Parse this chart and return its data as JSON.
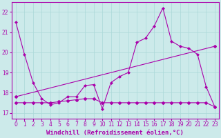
{
  "background_color": "#cceaea",
  "line_color": "#aa00aa",
  "title": "Windchill (Refroidissement éolien,°C)",
  "xlim": [
    -0.5,
    23.5
  ],
  "ylim": [
    16.7,
    22.5
  ],
  "yticks": [
    17,
    18,
    19,
    20,
    21,
    22
  ],
  "xticks": [
    0,
    1,
    2,
    3,
    4,
    5,
    6,
    7,
    8,
    9,
    10,
    11,
    12,
    13,
    14,
    15,
    16,
    17,
    18,
    19,
    20,
    21,
    22,
    23
  ],
  "series1_x": [
    0,
    1,
    2,
    3,
    4,
    5,
    6,
    7,
    8,
    9,
    10,
    11,
    12,
    13,
    14,
    15,
    16,
    17,
    18,
    19,
    20,
    21,
    22,
    23
  ],
  "series1_y": [
    21.5,
    19.9,
    18.5,
    17.7,
    17.4,
    17.5,
    17.8,
    17.8,
    18.35,
    18.4,
    17.2,
    18.5,
    18.8,
    19.0,
    20.5,
    20.7,
    21.3,
    22.2,
    20.55,
    20.3,
    20.2,
    19.9,
    18.3,
    17.3
  ],
  "series2_x": [
    0,
    23
  ],
  "series2_y": [
    17.8,
    20.3
  ],
  "series3_x": [
    0,
    1,
    2,
    3,
    4,
    5,
    6,
    7,
    8,
    9,
    10,
    11,
    12,
    13,
    14,
    15,
    16,
    17,
    18,
    19,
    20,
    21,
    22,
    23
  ],
  "series3_y": [
    17.5,
    17.5,
    17.5,
    17.5,
    17.5,
    17.55,
    17.6,
    17.65,
    17.7,
    17.7,
    17.5,
    17.5,
    17.5,
    17.5,
    17.5,
    17.5,
    17.5,
    17.5,
    17.5,
    17.5,
    17.5,
    17.5,
    17.5,
    17.3
  ],
  "grid_color": "#aad8d8",
  "tick_label_color": "#aa00aa",
  "tick_label_size": 5.5,
  "xlabel_size": 6.5
}
